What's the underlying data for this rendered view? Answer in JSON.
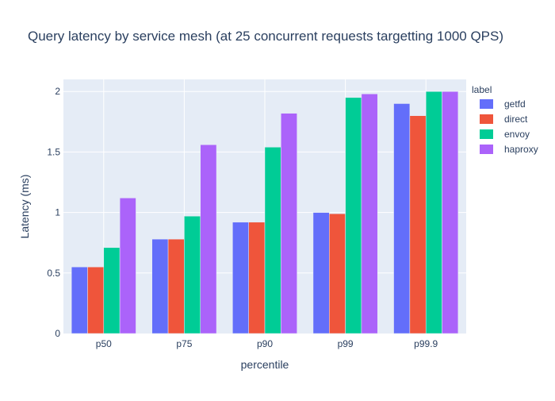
{
  "chart_data": {
    "type": "bar",
    "title": "Query latency by service mesh (at 25 concurrent requests targetting 1000 QPS)",
    "xlabel": "percentile",
    "ylabel": "Latency (ms)",
    "categories": [
      "p50",
      "p75",
      "p90",
      "p99",
      "p99.9"
    ],
    "ylim": [
      0,
      2.1
    ],
    "yticks": [
      0,
      0.5,
      1,
      1.5,
      2
    ],
    "ytick_labels": [
      "0",
      "0.5",
      "1",
      "1.5",
      "2"
    ],
    "grid": true,
    "legend": {
      "title": "label",
      "placement": "right"
    },
    "series": [
      {
        "name": "getfd",
        "color": "#636efa",
        "values": [
          0.55,
          0.78,
          0.92,
          1.0,
          1.9
        ]
      },
      {
        "name": "direct",
        "color": "#ef553b",
        "values": [
          0.55,
          0.78,
          0.92,
          0.99,
          1.8
        ]
      },
      {
        "name": "envoy",
        "color": "#00cc96",
        "values": [
          0.71,
          0.97,
          1.54,
          1.95,
          2.0
        ]
      },
      {
        "name": "haproxy",
        "color": "#ab63fa",
        "values": [
          1.12,
          1.56,
          1.82,
          1.98,
          2.0
        ]
      }
    ]
  },
  "colors": {
    "plot_background": "#e5ecf6",
    "gridline": "#ffffff",
    "text": "#2a3f5f"
  }
}
